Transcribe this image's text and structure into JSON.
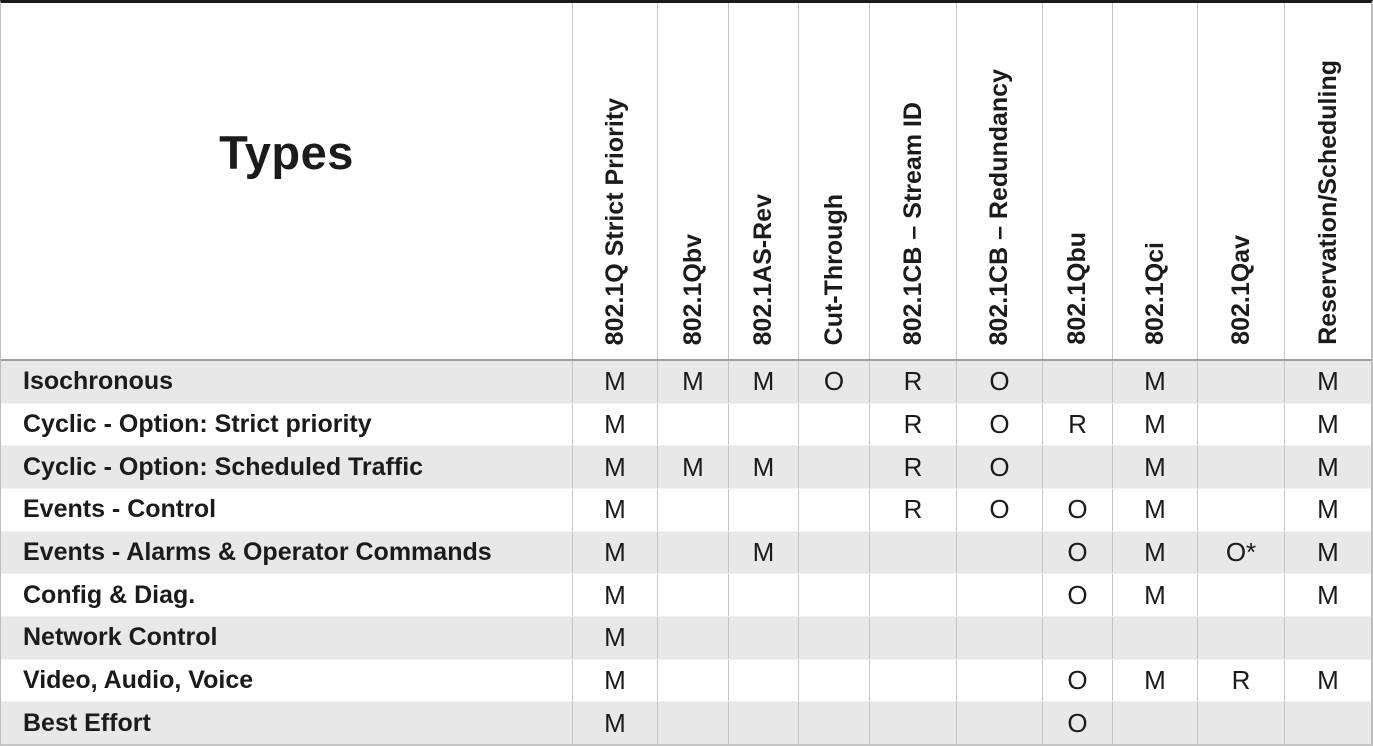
{
  "chart_data": {
    "type": "table",
    "corner_label": "Types",
    "columns": [
      "802.1Q Strict Priority",
      "802.1Qbv",
      "802.1AS-Rev",
      "Cut-Through",
      "802.1CB – Stream ID",
      "802.1CB – Redundancy",
      "802.1Qbu",
      "802.1Qci",
      "802.1Qav",
      "Reservation/Scheduling"
    ],
    "rows": [
      {
        "label": "Isochronous",
        "values": [
          "M",
          "M",
          "M",
          "O",
          "R",
          "O",
          "",
          "M",
          "",
          "M"
        ]
      },
      {
        "label": "Cyclic - Option: Strict priority",
        "values": [
          "M",
          "",
          "",
          "",
          "R",
          "O",
          "R",
          "M",
          "",
          "M"
        ]
      },
      {
        "label": "Cyclic - Option: Scheduled Traffic",
        "values": [
          "M",
          "M",
          "M",
          "",
          "R",
          "O",
          "",
          "M",
          "",
          "M"
        ]
      },
      {
        "label": "Events - Control",
        "values": [
          "M",
          "",
          "",
          "",
          "R",
          "O",
          "O",
          "M",
          "",
          "M"
        ]
      },
      {
        "label": "Events - Alarms & Operator Commands",
        "values": [
          "M",
          "",
          "M",
          "",
          "",
          "",
          "O",
          "M",
          "O*",
          "M"
        ]
      },
      {
        "label": "Config & Diag.",
        "values": [
          "M",
          "",
          "",
          "",
          "",
          "",
          "O",
          "M",
          "",
          "M"
        ]
      },
      {
        "label": "Network Control",
        "values": [
          "M",
          "",
          "",
          "",
          "",
          "",
          "",
          "",
          "",
          ""
        ]
      },
      {
        "label": "Video, Audio, Voice",
        "values": [
          "M",
          "",
          "",
          "",
          "",
          "",
          "O",
          "M",
          "R",
          "M"
        ]
      },
      {
        "label": "Best Effort",
        "values": [
          "M",
          "",
          "",
          "",
          "",
          "",
          "O",
          "",
          "",
          ""
        ]
      }
    ],
    "colors": {
      "stripe_row": "#e8e8e8",
      "grid_line": "#c5c5c5",
      "top_border": "#1a1a1a",
      "text": "#1b1b1b"
    },
    "layout_hints": {
      "header_text_rotation": "vertical, reading bottom-to-top",
      "stripe_pattern": "odd data rows shaded gray starting with first row"
    }
  }
}
